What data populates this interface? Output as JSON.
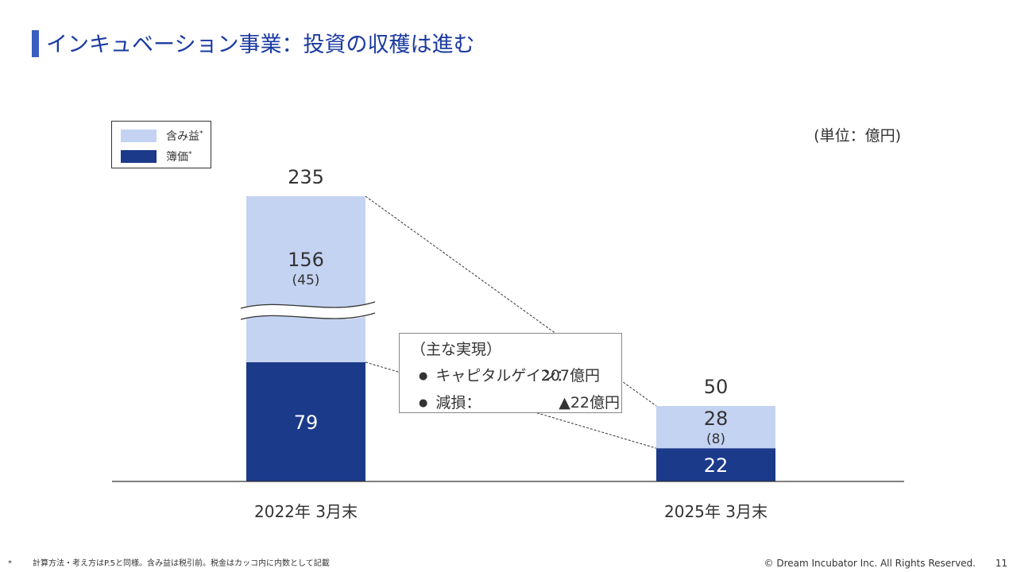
{
  "page": {
    "title": "インキュベーション事業：投資の収穫は進む",
    "unit": "(単位：億円)",
    "footnote_mark": "*",
    "footnote": "計算方法・考え方はP.5と同様。含み益は税引前。税金はカッコ内に内数として記載",
    "copyright": "© Dream Incubator Inc. All Rights Reserved.",
    "page_number": "11"
  },
  "legend": {
    "items": [
      {
        "label": "含み益",
        "sup": "*",
        "color": "#c5d3f2"
      },
      {
        "label": "簿価",
        "sup": "*",
        "color": "#1b3a8a"
      }
    ]
  },
  "callout": {
    "heading": "（主な実現）",
    "rows": [
      {
        "bullet": "●",
        "label": "キャピタルゲイン：",
        "value": "207億円"
      },
      {
        "bullet": "●",
        "label": "減損：",
        "value": "▲22億円"
      }
    ]
  },
  "chart_data": {
    "type": "bar",
    "stacked": true,
    "categories": [
      "2022年 3月末",
      "2025年 3月末"
    ],
    "series": [
      {
        "name": "簿価",
        "values": [
          79,
          22
        ],
        "color": "#1b3a8a",
        "label_color": "#ffffff"
      },
      {
        "name": "含み益",
        "values": [
          156,
          28
        ],
        "color": "#c5d3f2",
        "label_color": "#333333",
        "sub_labels": [
          "(45)",
          "(8)"
        ]
      }
    ],
    "totals": [
      235,
      50
    ],
    "axis_break": true
  }
}
